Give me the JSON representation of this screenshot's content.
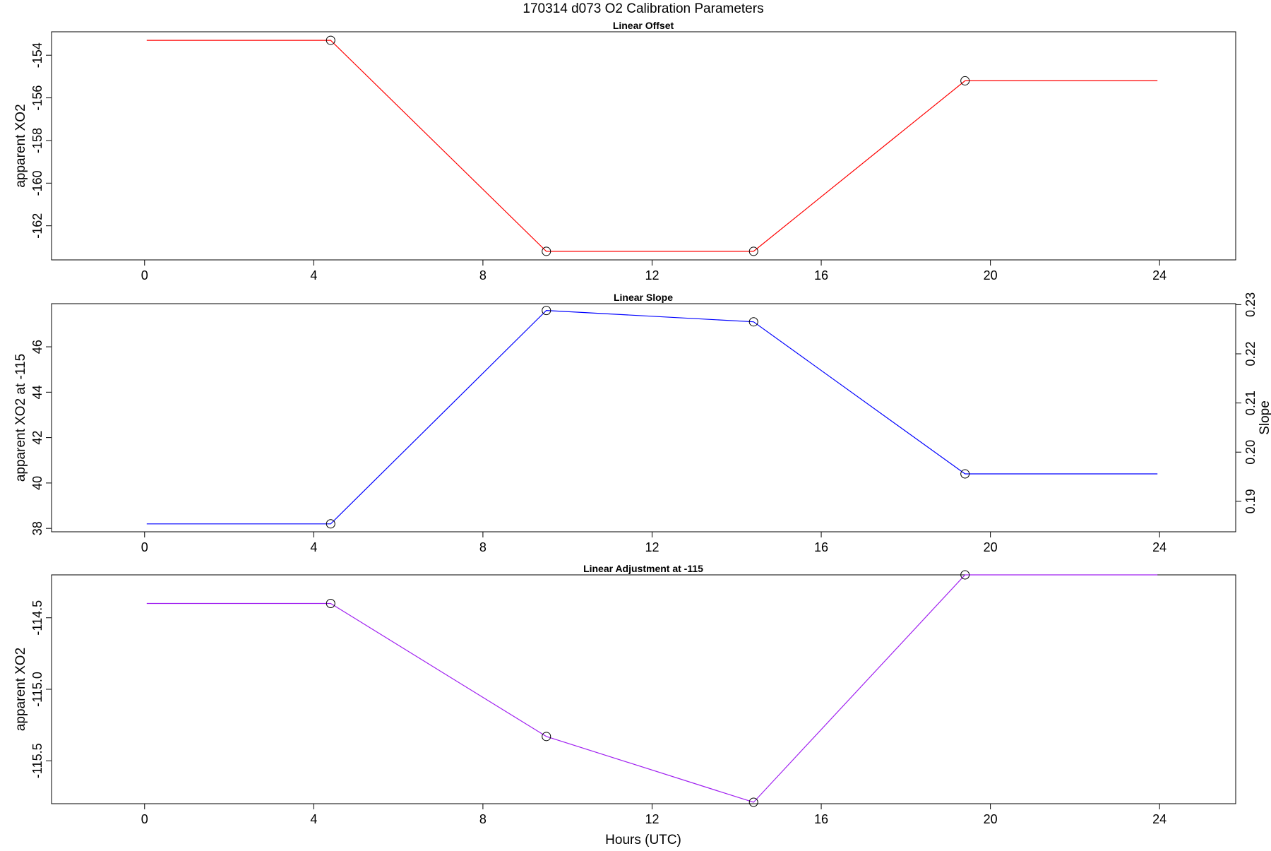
{
  "title": "170314   d073   O2 Calibration Parameters",
  "xlabel": "Hours (UTC)",
  "chart_data": [
    {
      "type": "line",
      "title": "Linear Offset",
      "ylabel": "apparent XO2",
      "xlim": [
        -2.2,
        25.8
      ],
      "ylim": [
        -163.6,
        -152.9
      ],
      "x_ticks": [
        0,
        4,
        8,
        12,
        16,
        20,
        24
      ],
      "y_ticks": [
        -154,
        -156,
        -158,
        -160,
        -162
      ],
      "color": "#ff0000",
      "series": [
        {
          "x": [
            0.05,
            4.4,
            9.5,
            14.4,
            19.4,
            23.95
          ],
          "y": [
            -153.3,
            -153.3,
            -163.2,
            -163.2,
            -155.2,
            -155.2
          ]
        }
      ],
      "markers_x": [
        4.4,
        9.5,
        14.4,
        19.4
      ],
      "markers_y": [
        -153.3,
        -163.2,
        -163.2,
        -155.2
      ]
    },
    {
      "type": "line",
      "title": "Linear Slope",
      "ylabel": "apparent XO2 at -115",
      "ylabel_right": "Slope",
      "xlim": [
        -2.2,
        25.8
      ],
      "ylim": [
        37.85,
        47.9
      ],
      "ylim_right": [
        0.1838,
        0.2302
      ],
      "x_ticks": [
        0,
        4,
        8,
        12,
        16,
        20,
        24
      ],
      "y_ticks": [
        38,
        40,
        42,
        44,
        46
      ],
      "y_ticks_right": [
        "0.19",
        "0.20",
        "0.21",
        "0.22",
        "0.23"
      ],
      "color": "#0000ff",
      "series": [
        {
          "x": [
            0.05,
            4.4,
            9.5,
            14.4,
            19.4,
            23.95
          ],
          "y": [
            38.2,
            38.2,
            47.6,
            47.1,
            40.4,
            40.4
          ]
        }
      ],
      "markers_x": [
        4.4,
        9.5,
        14.4,
        19.4
      ],
      "markers_y": [
        38.2,
        47.6,
        47.1,
        40.4
      ]
    },
    {
      "type": "line",
      "title": "Linear Adjustment at -115",
      "ylabel": "apparent XO2",
      "xlim": [
        -2.2,
        25.8
      ],
      "ylim": [
        -115.8,
        -114.2
      ],
      "x_ticks": [
        0,
        4,
        8,
        12,
        16,
        20,
        24
      ],
      "y_ticks": [
        "-114.5",
        "-115.0",
        "-115.5"
      ],
      "color": "#a020f0",
      "series": [
        {
          "x": [
            0.05,
            4.4,
            9.5,
            14.4,
            19.4,
            23.95
          ],
          "y": [
            -114.4,
            -114.4,
            -115.33,
            -115.79,
            -114.2,
            -114.2
          ]
        }
      ],
      "markers_x": [
        4.4,
        9.5,
        14.4,
        19.4
      ],
      "markers_y": [
        -114.4,
        -115.33,
        -115.79,
        -114.2
      ]
    }
  ]
}
